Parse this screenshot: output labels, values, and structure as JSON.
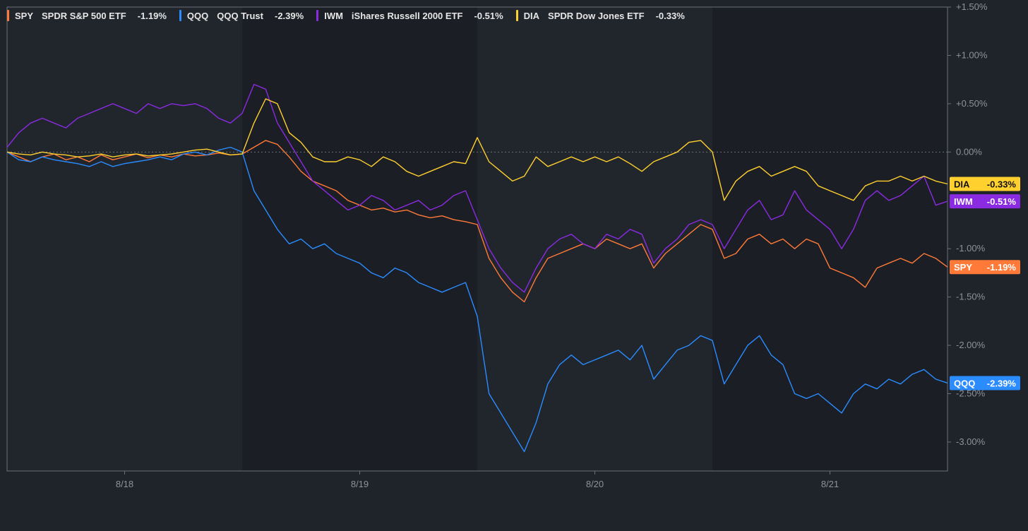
{
  "chart_data": {
    "type": "line",
    "ylabel": "",
    "xlabel": "",
    "ylim": [
      -3.3,
      1.5
    ],
    "y_ticks": [
      "+1.50%",
      "+1.00%",
      "+0.50%",
      "0.00%",
      "-1.00%",
      "-1.50%",
      "-2.00%",
      "-2.50%",
      "-3.00%"
    ],
    "y_tick_values": [
      1.5,
      1.0,
      0.5,
      0.0,
      -1.0,
      -1.5,
      -2.0,
      -2.5,
      -3.0
    ],
    "x_ticks": [
      "8/18",
      "8/19",
      "8/20",
      "8/21"
    ],
    "x_tick_positions": [
      0.5,
      1.5,
      2.5,
      3.5
    ],
    "xlim": [
      0.0,
      4.0
    ],
    "session_breaks": [
      1.0,
      2.0,
      3.0
    ],
    "grid": false,
    "legend_position": "top-left",
    "series": [
      {
        "symbol": "SPY",
        "name": "SPDR S&P 500 ETF",
        "last": "-1.19%",
        "color": "#ff7a38",
        "x": [
          0.0,
          0.05,
          0.1,
          0.15,
          0.2,
          0.25,
          0.3,
          0.35,
          0.4,
          0.45,
          0.5,
          0.55,
          0.6,
          0.65,
          0.7,
          0.75,
          0.8,
          0.85,
          0.9,
          0.95,
          1.0,
          1.05,
          1.1,
          1.15,
          1.2,
          1.25,
          1.3,
          1.35,
          1.4,
          1.45,
          1.5,
          1.55,
          1.6,
          1.65,
          1.7,
          1.75,
          1.8,
          1.85,
          1.9,
          1.95,
          2.0,
          2.05,
          2.1,
          2.15,
          2.2,
          2.25,
          2.3,
          2.35,
          2.4,
          2.45,
          2.5,
          2.55,
          2.6,
          2.65,
          2.7,
          2.75,
          2.8,
          2.85,
          2.9,
          2.95,
          3.0,
          3.05,
          3.1,
          3.15,
          3.2,
          3.25,
          3.3,
          3.35,
          3.4,
          3.45,
          3.5,
          3.55,
          3.6,
          3.65,
          3.7,
          3.75,
          3.8,
          3.85,
          3.9,
          3.95,
          4.0
        ],
        "values": [
          0.0,
          -0.05,
          -0.1,
          -0.05,
          -0.02,
          -0.08,
          -0.05,
          -0.1,
          -0.03,
          -0.08,
          -0.05,
          -0.02,
          -0.06,
          -0.03,
          -0.05,
          -0.02,
          -0.04,
          -0.03,
          -0.01,
          -0.03,
          -0.02,
          0.05,
          0.12,
          0.08,
          -0.05,
          -0.2,
          -0.3,
          -0.35,
          -0.4,
          -0.5,
          -0.55,
          -0.6,
          -0.58,
          -0.62,
          -0.6,
          -0.65,
          -0.68,
          -0.66,
          -0.7,
          -0.72,
          -0.75,
          -1.1,
          -1.3,
          -1.45,
          -1.55,
          -1.3,
          -1.1,
          -1.05,
          -1.0,
          -0.95,
          -1.0,
          -0.9,
          -0.95,
          -1.0,
          -0.95,
          -1.2,
          -1.05,
          -0.95,
          -0.85,
          -0.75,
          -0.8,
          -1.1,
          -1.05,
          -0.9,
          -0.85,
          -0.95,
          -0.9,
          -1.0,
          -0.9,
          -0.95,
          -1.2,
          -1.25,
          -1.3,
          -1.4,
          -1.2,
          -1.15,
          -1.1,
          -1.15,
          -1.05,
          -1.1,
          -1.19
        ]
      },
      {
        "symbol": "QQQ",
        "name": "QQQ Trust",
        "last": "-2.39%",
        "color": "#2a8cff",
        "x": [
          0.0,
          0.05,
          0.1,
          0.15,
          0.2,
          0.25,
          0.3,
          0.35,
          0.4,
          0.45,
          0.5,
          0.55,
          0.6,
          0.65,
          0.7,
          0.75,
          0.8,
          0.85,
          0.9,
          0.95,
          1.0,
          1.05,
          1.1,
          1.15,
          1.2,
          1.25,
          1.3,
          1.35,
          1.4,
          1.45,
          1.5,
          1.55,
          1.6,
          1.65,
          1.7,
          1.75,
          1.8,
          1.85,
          1.9,
          1.95,
          2.0,
          2.05,
          2.1,
          2.15,
          2.2,
          2.25,
          2.3,
          2.35,
          2.4,
          2.45,
          2.5,
          2.55,
          2.6,
          2.65,
          2.7,
          2.75,
          2.8,
          2.85,
          2.9,
          2.95,
          3.0,
          3.05,
          3.1,
          3.15,
          3.2,
          3.25,
          3.3,
          3.35,
          3.4,
          3.45,
          3.5,
          3.55,
          3.6,
          3.65,
          3.7,
          3.75,
          3.8,
          3.85,
          3.9,
          3.95,
          4.0
        ],
        "values": [
          0.0,
          -0.08,
          -0.1,
          -0.05,
          -0.08,
          -0.1,
          -0.12,
          -0.15,
          -0.1,
          -0.15,
          -0.12,
          -0.1,
          -0.08,
          -0.05,
          -0.08,
          -0.02,
          0.0,
          -0.03,
          0.02,
          0.05,
          0.0,
          -0.4,
          -0.6,
          -0.8,
          -0.95,
          -0.9,
          -1.0,
          -0.95,
          -1.05,
          -1.1,
          -1.15,
          -1.25,
          -1.3,
          -1.2,
          -1.25,
          -1.35,
          -1.4,
          -1.45,
          -1.4,
          -1.35,
          -1.7,
          -2.5,
          -2.7,
          -2.9,
          -3.1,
          -2.8,
          -2.4,
          -2.2,
          -2.1,
          -2.2,
          -2.15,
          -2.1,
          -2.05,
          -2.15,
          -2.0,
          -2.35,
          -2.2,
          -2.05,
          -2.0,
          -1.9,
          -1.95,
          -2.4,
          -2.2,
          -2.0,
          -1.9,
          -2.1,
          -2.2,
          -2.5,
          -2.55,
          -2.5,
          -2.6,
          -2.7,
          -2.5,
          -2.4,
          -2.45,
          -2.35,
          -2.4,
          -2.3,
          -2.25,
          -2.35,
          -2.39
        ]
      },
      {
        "symbol": "IWM",
        "name": "iShares Russell 2000 ETF",
        "last": "-0.51%",
        "color": "#8a2be2",
        "x": [
          0.0,
          0.05,
          0.1,
          0.15,
          0.2,
          0.25,
          0.3,
          0.35,
          0.4,
          0.45,
          0.5,
          0.55,
          0.6,
          0.65,
          0.7,
          0.75,
          0.8,
          0.85,
          0.9,
          0.95,
          1.0,
          1.05,
          1.1,
          1.15,
          1.2,
          1.25,
          1.3,
          1.35,
          1.4,
          1.45,
          1.5,
          1.55,
          1.6,
          1.65,
          1.7,
          1.75,
          1.8,
          1.85,
          1.9,
          1.95,
          2.0,
          2.05,
          2.1,
          2.15,
          2.2,
          2.25,
          2.3,
          2.35,
          2.4,
          2.45,
          2.5,
          2.55,
          2.6,
          2.65,
          2.7,
          2.75,
          2.8,
          2.85,
          2.9,
          2.95,
          3.0,
          3.05,
          3.1,
          3.15,
          3.2,
          3.25,
          3.3,
          3.35,
          3.4,
          3.45,
          3.5,
          3.55,
          3.6,
          3.65,
          3.7,
          3.75,
          3.8,
          3.85,
          3.9,
          3.95,
          4.0
        ],
        "values": [
          0.05,
          0.2,
          0.3,
          0.35,
          0.3,
          0.25,
          0.35,
          0.4,
          0.45,
          0.5,
          0.45,
          0.4,
          0.5,
          0.45,
          0.5,
          0.48,
          0.5,
          0.45,
          0.35,
          0.3,
          0.4,
          0.7,
          0.65,
          0.3,
          0.1,
          -0.1,
          -0.3,
          -0.4,
          -0.5,
          -0.6,
          -0.55,
          -0.45,
          -0.5,
          -0.6,
          -0.55,
          -0.5,
          -0.6,
          -0.55,
          -0.45,
          -0.4,
          -0.7,
          -1.0,
          -1.2,
          -1.35,
          -1.45,
          -1.2,
          -1.0,
          -0.9,
          -0.85,
          -0.95,
          -1.0,
          -0.85,
          -0.9,
          -0.8,
          -0.85,
          -1.15,
          -1.0,
          -0.9,
          -0.75,
          -0.7,
          -0.75,
          -1.0,
          -0.8,
          -0.6,
          -0.5,
          -0.7,
          -0.65,
          -0.4,
          -0.6,
          -0.7,
          -0.8,
          -1.0,
          -0.8,
          -0.5,
          -0.4,
          -0.5,
          -0.45,
          -0.35,
          -0.25,
          -0.55,
          -0.51
        ]
      },
      {
        "symbol": "DIA",
        "name": "SPDR Dow Jones ETF",
        "last": "-0.33%",
        "color": "#ffd02e",
        "x": [
          0.0,
          0.05,
          0.1,
          0.15,
          0.2,
          0.25,
          0.3,
          0.35,
          0.4,
          0.45,
          0.5,
          0.55,
          0.6,
          0.65,
          0.7,
          0.75,
          0.8,
          0.85,
          0.9,
          0.95,
          1.0,
          1.05,
          1.1,
          1.15,
          1.2,
          1.25,
          1.3,
          1.35,
          1.4,
          1.45,
          1.5,
          1.55,
          1.6,
          1.65,
          1.7,
          1.75,
          1.8,
          1.85,
          1.9,
          1.95,
          2.0,
          2.05,
          2.1,
          2.15,
          2.2,
          2.25,
          2.3,
          2.35,
          2.4,
          2.45,
          2.5,
          2.55,
          2.6,
          2.65,
          2.7,
          2.75,
          2.8,
          2.85,
          2.9,
          2.95,
          3.0,
          3.05,
          3.1,
          3.15,
          3.2,
          3.25,
          3.3,
          3.35,
          3.4,
          3.45,
          3.5,
          3.55,
          3.6,
          3.65,
          3.7,
          3.75,
          3.8,
          3.85,
          3.9,
          3.95,
          4.0
        ],
        "values": [
          0.0,
          -0.02,
          -0.03,
          0.0,
          -0.02,
          -0.03,
          -0.05,
          -0.04,
          -0.02,
          -0.05,
          -0.03,
          -0.02,
          -0.04,
          -0.03,
          -0.02,
          0.0,
          0.02,
          0.03,
          0.0,
          -0.03,
          -0.02,
          0.3,
          0.55,
          0.5,
          0.2,
          0.1,
          -0.05,
          -0.1,
          -0.1,
          -0.05,
          -0.08,
          -0.15,
          -0.05,
          -0.1,
          -0.2,
          -0.25,
          -0.2,
          -0.15,
          -0.1,
          -0.12,
          0.15,
          -0.1,
          -0.2,
          -0.3,
          -0.25,
          -0.05,
          -0.15,
          -0.1,
          -0.05,
          -0.1,
          -0.05,
          -0.1,
          -0.05,
          -0.12,
          -0.2,
          -0.1,
          -0.05,
          0.0,
          0.1,
          0.12,
          0.0,
          -0.5,
          -0.3,
          -0.2,
          -0.15,
          -0.25,
          -0.2,
          -0.15,
          -0.2,
          -0.35,
          -0.4,
          -0.45,
          -0.5,
          -0.35,
          -0.3,
          -0.3,
          -0.25,
          -0.3,
          -0.25,
          -0.3,
          -0.33
        ]
      }
    ]
  }
}
